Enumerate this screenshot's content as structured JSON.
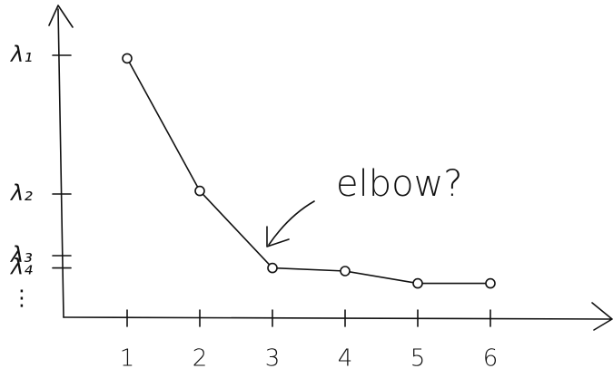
{
  "chart_data": {
    "type": "line",
    "categories": [
      "1",
      "2",
      "3",
      "4",
      "5",
      "6"
    ],
    "values": [
      8.4,
      4.1,
      1.6,
      1.5,
      1.1,
      1.1
    ],
    "color": "#111111",
    "ylim": [
      0,
      10
    ],
    "yticks": [
      {
        "value": 8.5,
        "label": "λ₁"
      },
      {
        "value": 4.0,
        "label": "λ₂"
      },
      {
        "value": 2.0,
        "label": "λ₃"
      },
      {
        "value": 1.6,
        "label": "λ₄"
      },
      {
        "value": 0.6,
        "label": "⋮"
      }
    ],
    "annotation": "elbow?"
  }
}
